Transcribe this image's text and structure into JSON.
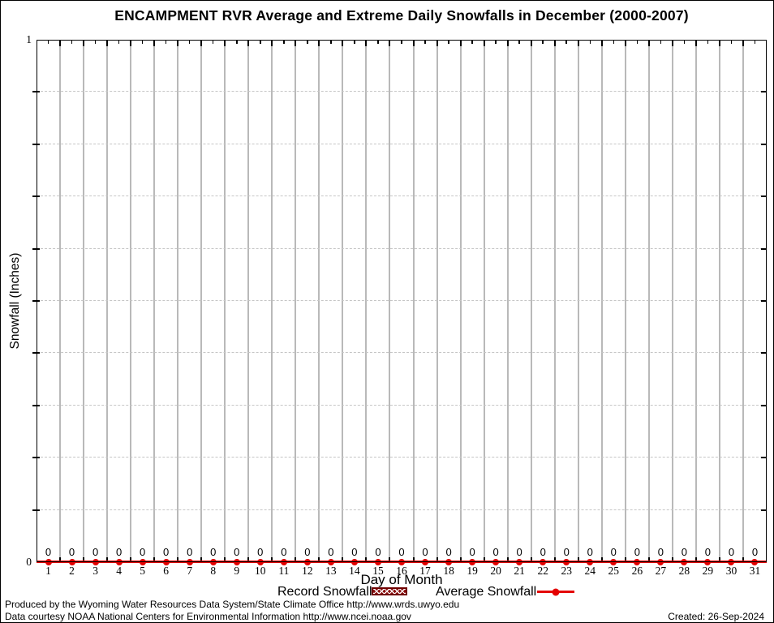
{
  "chart_data": {
    "type": "line",
    "title": "ENCAMPMENT RVR Average and Extreme Daily Snowfalls in December (2000-2007)",
    "xlabel": "Day of Month",
    "ylabel": "Snowfall (Inches)",
    "ylim": [
      0,
      1
    ],
    "y_ticks": [
      {
        "value": 0,
        "label": "0"
      },
      {
        "value": 1,
        "label": "1"
      }
    ],
    "y_minor_grid_interval": 0.1,
    "grid": true,
    "legend_position": "bottom",
    "x": [
      1,
      2,
      3,
      4,
      5,
      6,
      7,
      8,
      9,
      10,
      11,
      12,
      13,
      14,
      15,
      16,
      17,
      18,
      19,
      20,
      21,
      22,
      23,
      24,
      25,
      26,
      27,
      28,
      29,
      30,
      31
    ],
    "series": [
      {
        "name": "Record Snowfall",
        "style": "bar-hatched",
        "color": "#8b0f0f",
        "values": [
          0,
          0,
          0,
          0,
          0,
          0,
          0,
          0,
          0,
          0,
          0,
          0,
          0,
          0,
          0,
          0,
          0,
          0,
          0,
          0,
          0,
          0,
          0,
          0,
          0,
          0,
          0,
          0,
          0,
          0,
          0
        ]
      },
      {
        "name": "Average Snowfall",
        "style": "line-dot",
        "color": "#e40000",
        "values": [
          0,
          0,
          0,
          0,
          0,
          0,
          0,
          0,
          0,
          0,
          0,
          0,
          0,
          0,
          0,
          0,
          0,
          0,
          0,
          0,
          0,
          0,
          0,
          0,
          0,
          0,
          0,
          0,
          0,
          0,
          0
        ]
      }
    ],
    "data_labels": [
      "0",
      "0",
      "0",
      "0",
      "0",
      "0",
      "0",
      "0",
      "0",
      "0",
      "0",
      "0",
      "0",
      "0",
      "0",
      "0",
      "0",
      "0",
      "0",
      "0",
      "0",
      "0",
      "0",
      "0",
      "0",
      "0",
      "0",
      "0",
      "0",
      "0",
      "0"
    ]
  },
  "colors": {
    "series_red": "#e40000",
    "record_dark_red": "#8b0f0f",
    "grid_vertical": "#b9b9b9",
    "grid_dashed": "#c6c6c6"
  },
  "footer": {
    "line1": "Produced by the Wyoming Water Resources Data System/State Climate Office http://www.wrds.uwyo.edu",
    "line2": "Data courtesy NOAA National Centers for Environmental Information http://www.ncei.noaa.gov",
    "created": "Created: 26-Sep-2024"
  }
}
